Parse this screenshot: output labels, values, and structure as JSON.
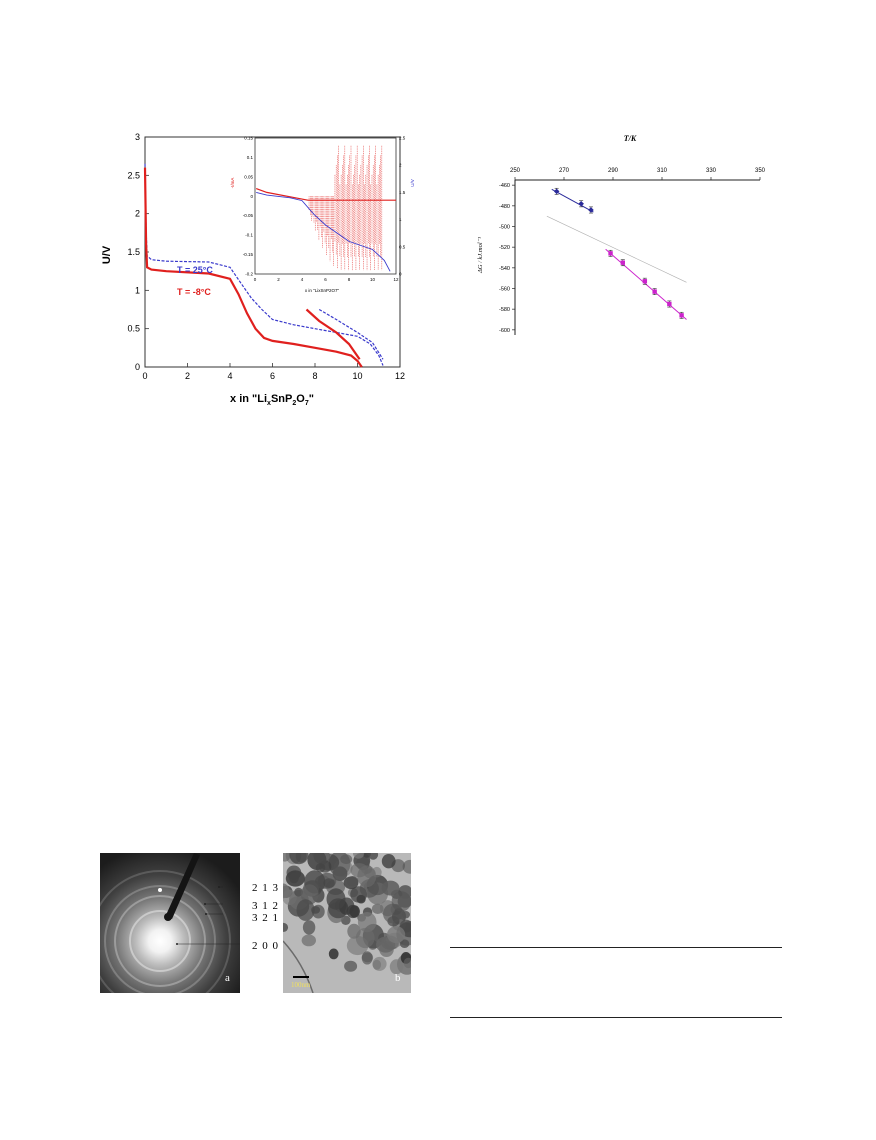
{
  "chart_data": [
    {
      "type": "line",
      "xlabel": "x in \"Li",
      "xlabel_sub_x": "x",
      "xlabel_mid": "SnP",
      "xlabel_sub_2": "2",
      "xlabel_o": "O",
      "xlabel_sub_7": "7",
      "xlabel_end": "\"",
      "ylabel": "U/V",
      "xlim": [
        0,
        12
      ],
      "ylim": [
        0,
        3
      ],
      "x_ticks": [
        "0",
        "2",
        "4",
        "6",
        "8",
        "10",
        "12"
      ],
      "y_ticks": [
        "0",
        "0.5",
        "1",
        "1.5",
        "2",
        "2.5",
        "3"
      ],
      "series": [
        {
          "name": "T = 25°C",
          "color": "#3a3acc",
          "points": [
            [
              0,
              2.65
            ],
            [
              0.05,
              1.8
            ],
            [
              0.1,
              1.45
            ],
            [
              0.3,
              1.4
            ],
            [
              1,
              1.38
            ],
            [
              3,
              1.37
            ],
            [
              4,
              1.3
            ],
            [
              4.5,
              1.1
            ],
            [
              5,
              0.9
            ],
            [
              5.5,
              0.75
            ],
            [
              6,
              0.62
            ],
            [
              7,
              0.55
            ],
            [
              8,
              0.5
            ],
            [
              9,
              0.45
            ],
            [
              10,
              0.4
            ],
            [
              10.6,
              0.3
            ],
            [
              11,
              0.15
            ],
            [
              11.2,
              0.02
            ]
          ]
        },
        {
          "name": "T = -8°C",
          "color": "#e0201e",
          "points": [
            [
              0,
              2.6
            ],
            [
              0.05,
              1.6
            ],
            [
              0.1,
              1.3
            ],
            [
              0.3,
              1.27
            ],
            [
              1,
              1.25
            ],
            [
              3,
              1.22
            ],
            [
              4,
              1.15
            ],
            [
              4.4,
              0.95
            ],
            [
              4.8,
              0.7
            ],
            [
              5.2,
              0.5
            ],
            [
              5.6,
              0.38
            ],
            [
              6,
              0.34
            ],
            [
              7,
              0.3
            ],
            [
              8,
              0.25
            ],
            [
              9,
              0.2
            ],
            [
              9.7,
              0.15
            ],
            [
              10,
              0.08
            ],
            [
              10.2,
              0.0
            ]
          ]
        },
        {
          "name": "",
          "color": "#3a3acc",
          "points": [
            [
              8.2,
              0.75
            ],
            [
              9,
              0.62
            ],
            [
              10,
              0.45
            ],
            [
              10.7,
              0.32
            ],
            [
              11.2,
              0.1
            ]
          ]
        },
        {
          "name": "",
          "color": "#e0201e",
          "points": [
            [
              7.6,
              0.75
            ],
            [
              8.2,
              0.6
            ],
            [
              9,
              0.45
            ],
            [
              9.6,
              0.3
            ],
            [
              10.1,
              0.1
            ]
          ]
        }
      ],
      "inset": {
        "xlabel": "x in \"LixSnP2O7\"",
        "left_ylabel": "-I/mA",
        "right_ylabel": "U/V",
        "xlim": [
          0,
          12
        ],
        "left_ylim": [
          -0.2,
          0.15
        ],
        "right_ylim": [
          0,
          2.5
        ],
        "x_ticks": [
          "0",
          "2",
          "4",
          "6",
          "8",
          "10",
          "12"
        ],
        "left_ticks": [
          "0.15",
          "0.1",
          "0.05",
          "0",
          "-0.05",
          "-0.1",
          "-0.15",
          "-0.2"
        ],
        "right_ticks": [
          "2.5",
          "2",
          "1.5",
          "1",
          "0.5",
          "0"
        ]
      }
    },
    {
      "type": "scatter",
      "title": "T/K",
      "ylabel": "ΔG / kJ.mol⁻¹",
      "xlim": [
        250,
        350
      ],
      "ylim": [
        -600,
        -450
      ],
      "x_ticks": [
        "250",
        "270",
        "290",
        "310",
        "330",
        "350"
      ],
      "y_ticks": [
        "-460",
        "-480",
        "-500",
        "-520",
        "-540",
        "-560",
        "-580",
        "-600"
      ],
      "series": [
        {
          "name": "",
          "color": "#2a2a9a",
          "marker": "diamond",
          "x": [
            267,
            277,
            281
          ],
          "y": [
            -466,
            -478,
            -484
          ],
          "err": [
            3,
            3,
            3
          ]
        },
        {
          "name": "",
          "color": "#cc22cc",
          "marker": "square",
          "x": [
            289,
            294,
            303,
            307,
            313,
            318
          ],
          "y": [
            -526,
            -535,
            -553,
            -563,
            -575,
            -586
          ],
          "err": [
            3,
            3,
            3,
            3,
            3,
            3
          ]
        }
      ],
      "fit_lines": [
        {
          "color": "#2a2a9a",
          "x": [
            265,
            282
          ],
          "y": [
            -464,
            -486
          ]
        },
        {
          "color": "#cc22cc",
          "x": [
            287,
            320
          ],
          "y": [
            -522,
            -590
          ]
        },
        {
          "color": "#b0b0b0",
          "x": [
            263,
            320
          ],
          "y": [
            -490,
            -554
          ]
        }
      ]
    }
  ],
  "images": {
    "saed": {
      "panel": "a",
      "labels": [
        "2 1 3",
        "3 1 2",
        "3 2 1",
        "2 0 0"
      ]
    },
    "tem": {
      "panel": "b",
      "scale_bar": "100nm"
    }
  }
}
